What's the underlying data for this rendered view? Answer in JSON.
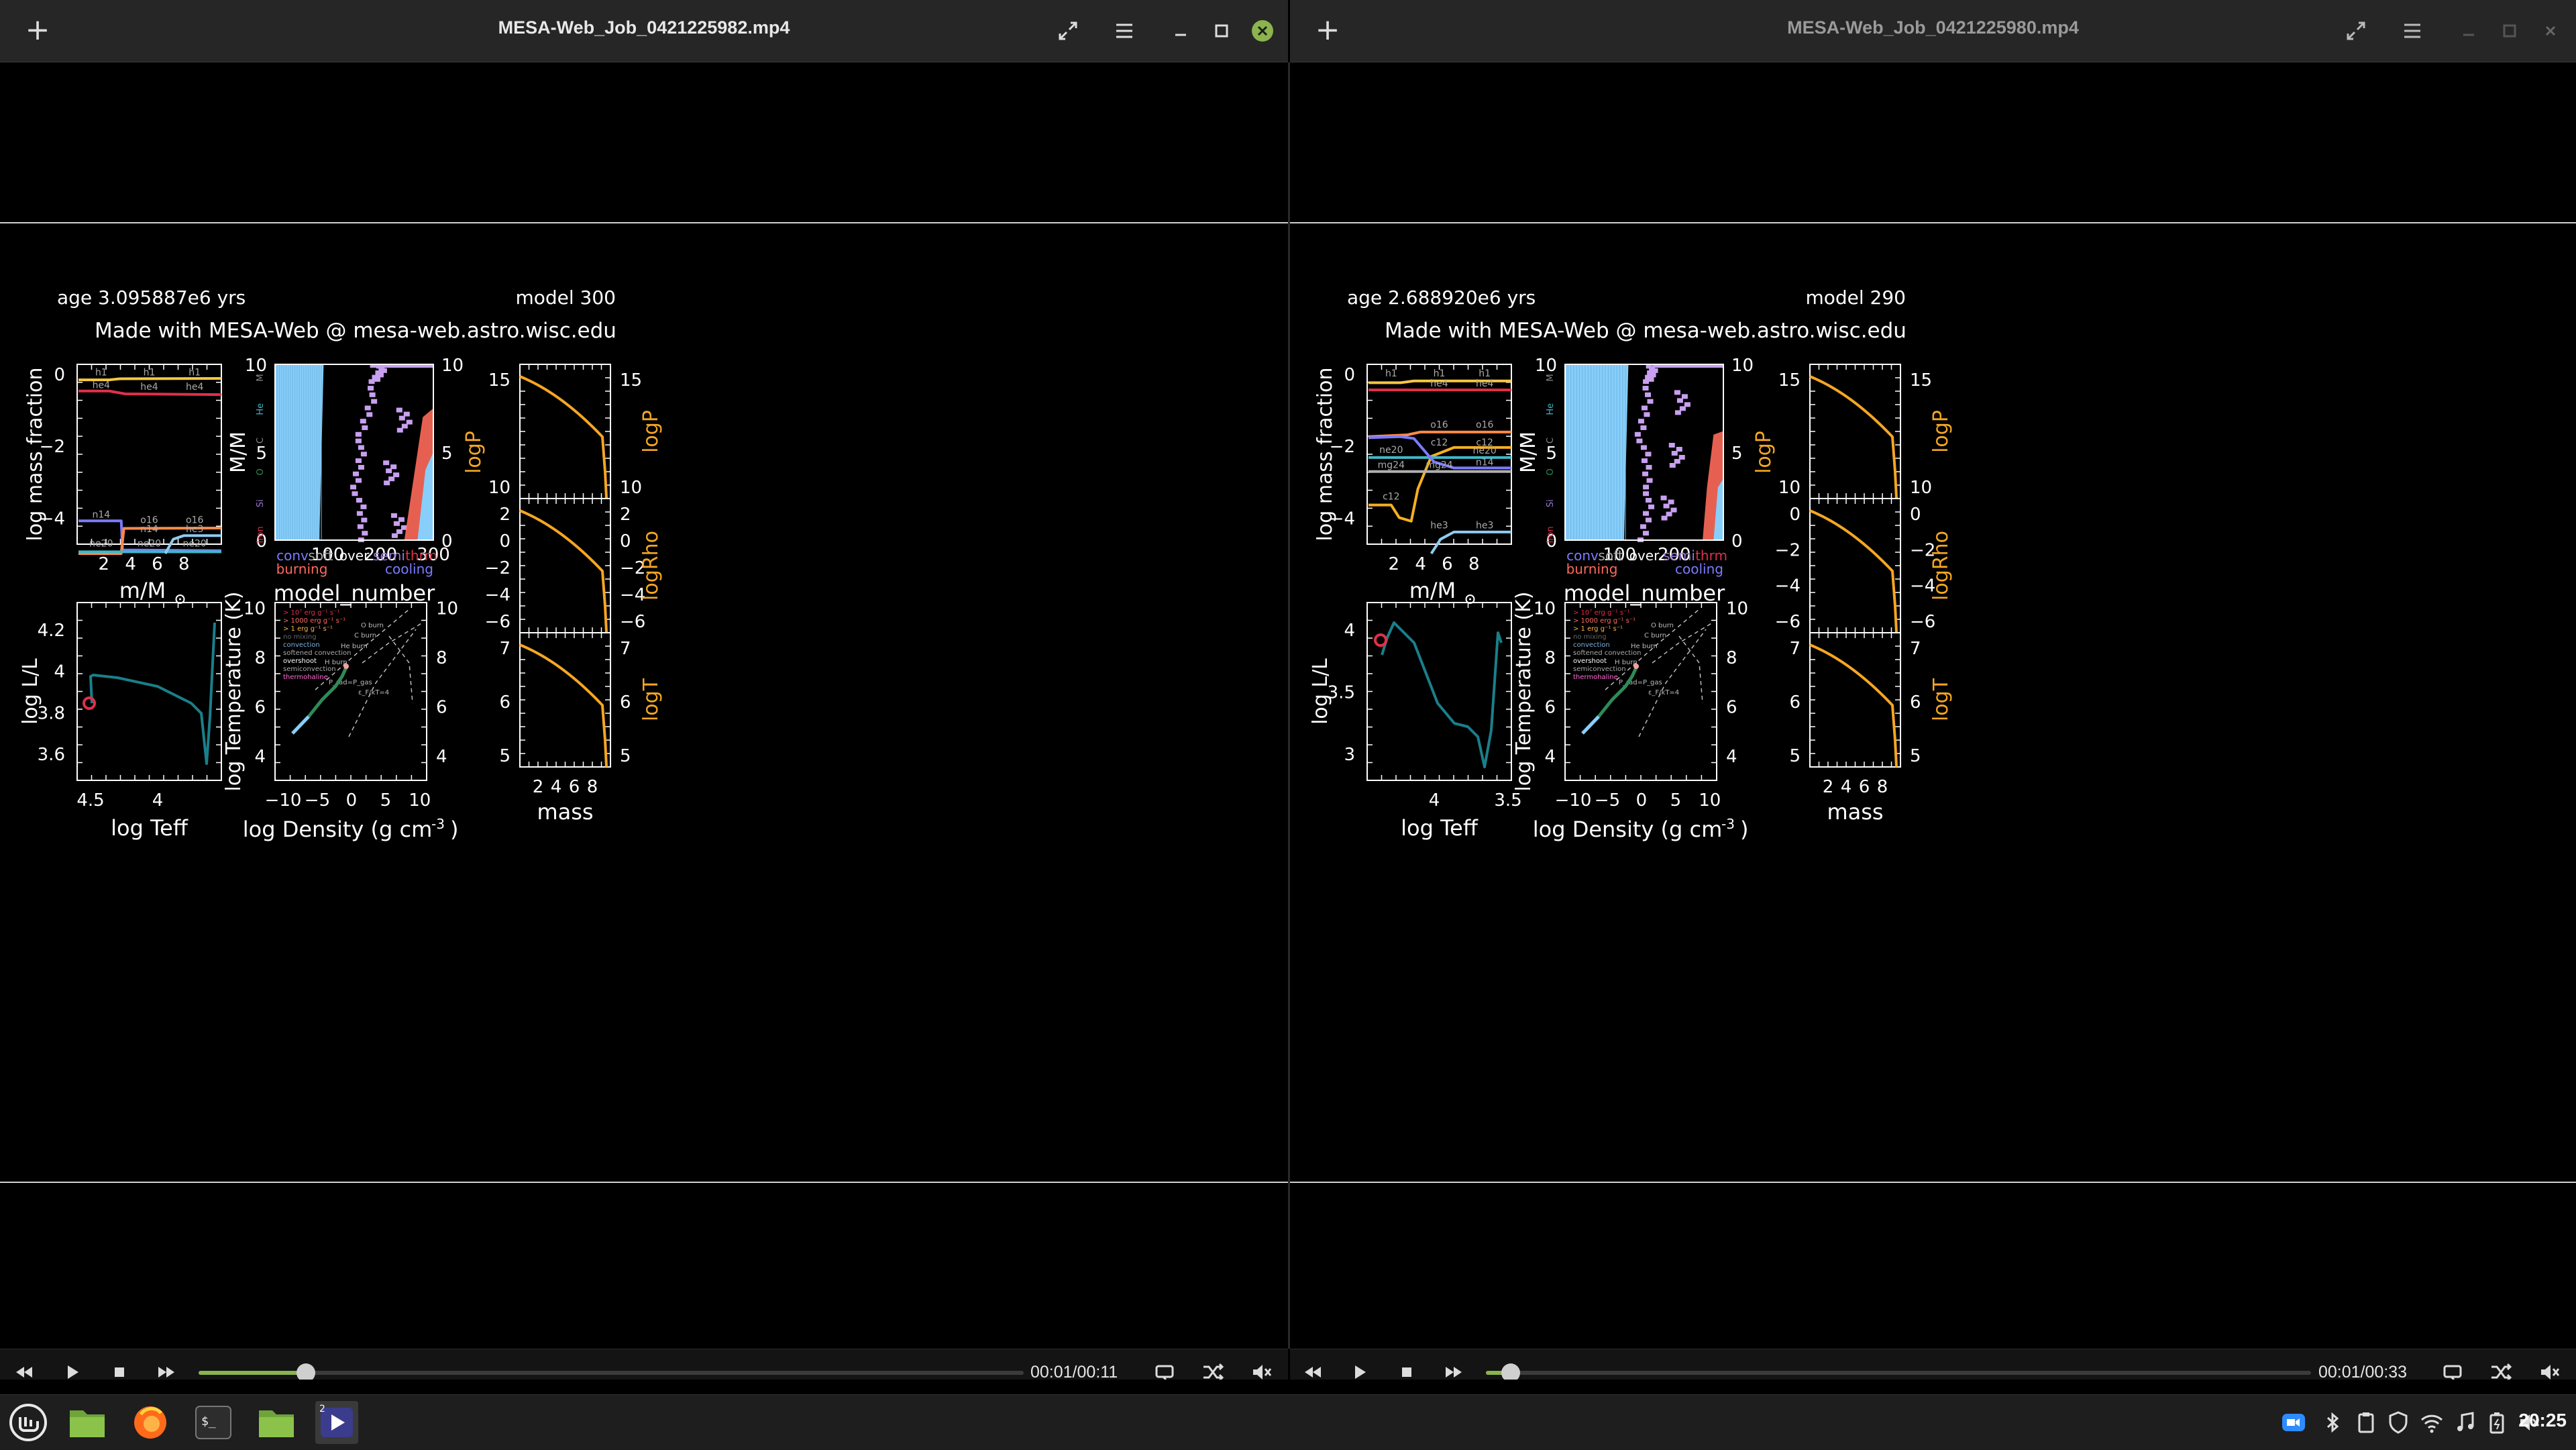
{
  "windows": [
    {
      "title": "MESA-Web_Job_0421225982.mp4",
      "age_label": "age 3.095887e6 yrs",
      "model_label": "model 300",
      "credit": "Made with MESA-Web @ mesa-web.astro.wisc.edu",
      "time": "00:01/00:11",
      "progress": 0.13
    },
    {
      "title": "MESA-Web_Job_0421225980.mp4",
      "age_label": "age 2.688920e6 yrs",
      "model_label": "model 290",
      "credit": "Made with MESA-Web @ mesa-web.astro.wisc.edu",
      "time": "00:01/00:33",
      "progress": 0.03
    }
  ],
  "plot_labels": {
    "abund_ylabel": "log mass fraction",
    "abund_xlabel": "m/M",
    "kipp_ylabel": "M/M",
    "kipp_xlabel": "model_number",
    "hr_ylabel": "log L/L",
    "hr_xlabel": "log Teff",
    "trho_ylabel": "log Temperature (K)",
    "trho_xlabel": "log Density (g cm",
    "trho_xlabel_sup": "-3",
    "trho_xlabel_end": ")",
    "logP": "logP",
    "logRho": "logRho",
    "logT": "logT",
    "mass": "mass",
    "kipp_left_tags": [
      "M",
      "He",
      "C",
      "O",
      "Si",
      "Iron"
    ],
    "kipp_legend_row1": [
      "conv",
      "soft",
      "over",
      "semi",
      "thrm"
    ],
    "kipp_legend_row2": [
      "burning",
      "cooling"
    ],
    "trho_legend": [
      "> 10⁷ erg g⁻¹ s⁻¹",
      "> 1000 erg g⁻¹ s⁻¹",
      "> 1 erg g⁻¹ s⁻¹",
      "no mixing",
      "convection",
      "softened convection",
      "overshoot",
      "semiconvection",
      "thermohaline"
    ],
    "trho_annotations": [
      "O burn",
      "C burn",
      "He burn",
      "H burn",
      "P_rad=P_gas",
      "ε_F/kT=4"
    ]
  },
  "charts": {
    "left": {
      "abund_yticks": [
        "0",
        "−2",
        "−4"
      ],
      "abund_xticks": [
        "2",
        "4",
        "6",
        "8"
      ],
      "abund_series": [
        "h1",
        "he4",
        "n14",
        "o16",
        "ne20",
        "he3"
      ],
      "kipp_xticks": [
        "100",
        "200",
        "300"
      ],
      "kipp_yticks": [
        "0",
        "5",
        "10"
      ],
      "hr_yticks": [
        "4.2",
        "4",
        "3.8",
        "3.6"
      ],
      "hr_xticks": [
        "4.5",
        "4"
      ],
      "trho_yticks": [
        "4",
        "6",
        "8",
        "10"
      ],
      "trho_xticks": [
        "−10",
        "−5",
        "0",
        "5",
        "10"
      ],
      "logP_ticks": [
        "15",
        "10"
      ],
      "logRho_ticks": [
        "2",
        "0",
        "−2",
        "−4",
        "−6"
      ],
      "logT_ticks": [
        "7",
        "6",
        "5"
      ],
      "mass_ticks": [
        "2",
        "4",
        "6",
        "8"
      ]
    },
    "right": {
      "abund_yticks": [
        "0",
        "−2",
        "−4"
      ],
      "abund_xticks": [
        "2",
        "4",
        "6",
        "8"
      ],
      "abund_series": [
        "h1",
        "he4",
        "o16",
        "c12",
        "ne20",
        "n14",
        "mg24",
        "he3"
      ],
      "kipp_xticks": [
        "100",
        "200"
      ],
      "kipp_yticks": [
        "0",
        "5",
        "10"
      ],
      "hr_yticks": [
        "4",
        "3.5",
        "3"
      ],
      "hr_xticks": [
        "4",
        "3.5"
      ],
      "trho_yticks": [
        "4",
        "6",
        "8",
        "10"
      ],
      "trho_xticks": [
        "−10",
        "−5",
        "0",
        "5",
        "10"
      ],
      "logP_ticks": [
        "15",
        "10"
      ],
      "logRho_ticks": [
        "0",
        "−2",
        "−4",
        "−6"
      ],
      "logT_ticks": [
        "7",
        "6",
        "5"
      ],
      "mass_ticks": [
        "2",
        "4",
        "6",
        "8"
      ]
    }
  },
  "taskbar": {
    "clock": "20:25",
    "workspace_badge": "2"
  },
  "colors": {
    "accent_green": "#8bb34e",
    "curve_orange": "#f5a623",
    "hr_track": "#1a7f8a",
    "convective": "#87cefa",
    "overshoot": "#c8a0f0",
    "burning": "#ff6a5a"
  }
}
